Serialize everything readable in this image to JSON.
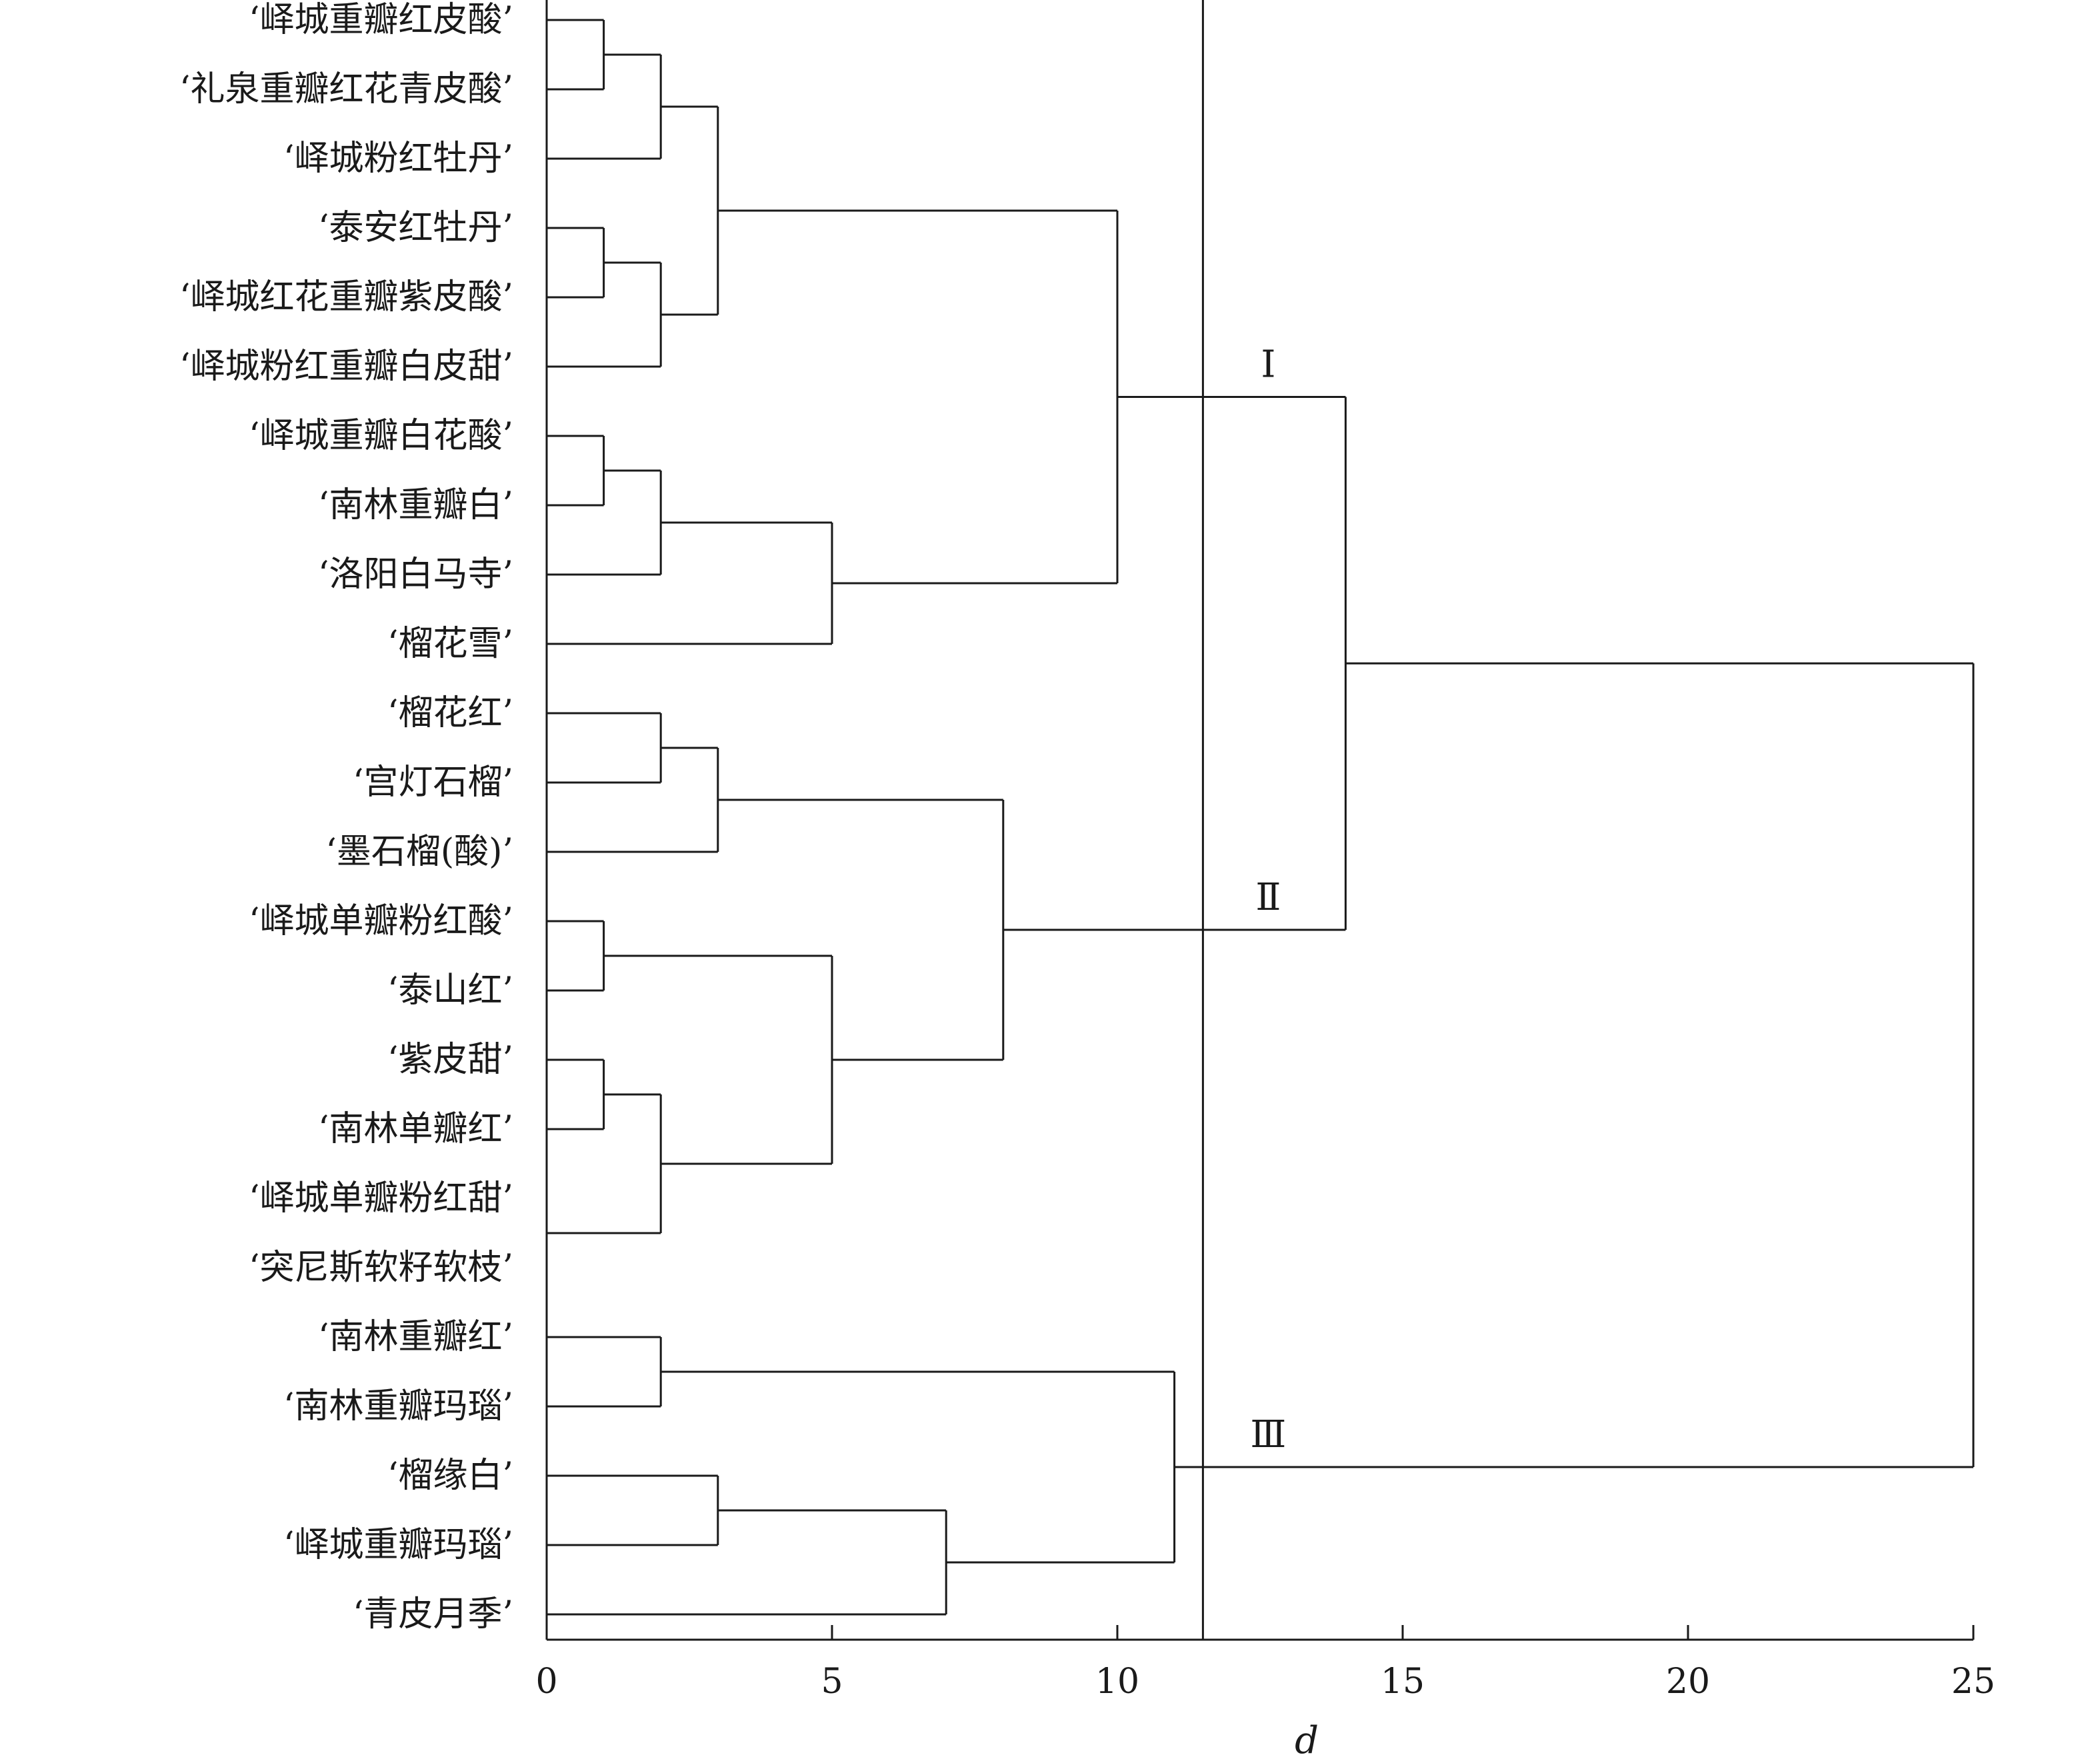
{
  "chart_data": {
    "type": "dendrogram",
    "title": "",
    "xlabel": "d",
    "ylabel": "",
    "xlim": [
      0,
      25
    ],
    "x_ticks": [
      0,
      5,
      10,
      15,
      20,
      25
    ],
    "cut_distance": 11.5,
    "grid": false,
    "leaves": [
      "‘峄城重瓣红皮酸’",
      "‘礼泉重瓣红花青皮酸’",
      "‘峄城粉红牡丹’",
      "‘泰安红牡丹’",
      "‘峄城红花重瓣紫皮酸’",
      "‘峄城粉红重瓣白皮甜’",
      "‘峄城重瓣白花酸’",
      "‘南林重瓣白’",
      "‘洛阳白马寺’",
      "‘榴花雪’",
      "‘榴花红’",
      "‘宫灯石榴’",
      "‘墨石榴(酸)’",
      "‘峄城单瓣粉红酸’",
      "‘泰山红’",
      "‘紫皮甜’",
      "‘南林单瓣红’",
      "‘峄城单瓣粉红甜’",
      "‘突尼斯软籽软枝’",
      "‘南林重瓣红’",
      "‘南林重瓣玛瑙’",
      "‘榴缘白’",
      "‘峄城重瓣玛瑙’",
      "‘青皮月季’"
    ],
    "merges": [
      {
        "a": "L0",
        "b": "L1",
        "d": 1
      },
      {
        "a": "M0",
        "b": "L2",
        "d": 2
      },
      {
        "a": "L3",
        "b": "L4",
        "d": 1
      },
      {
        "a": "M2",
        "b": "L5",
        "d": 2
      },
      {
        "a": "M1",
        "b": "M3",
        "d": 3
      },
      {
        "a": "L6",
        "b": "L7",
        "d": 1
      },
      {
        "a": "M5",
        "b": "L8",
        "d": 2
      },
      {
        "a": "M6",
        "b": "L9",
        "d": 5
      },
      {
        "a": "M4",
        "b": "M7",
        "d": 10
      },
      {
        "a": "L10",
        "b": "L11",
        "d": 2
      },
      {
        "a": "M9",
        "b": "L12",
        "d": 3
      },
      {
        "a": "L13",
        "b": "L14",
        "d": 1
      },
      {
        "a": "L15",
        "b": "L16",
        "d": 1
      },
      {
        "a": "L17",
        "b": "L18",
        "d": 0
      },
      {
        "a": "M12",
        "b": "M13",
        "d": 2
      },
      {
        "a": "M11",
        "b": "M14",
        "d": 5
      },
      {
        "a": "M10",
        "b": "M15",
        "d": 8
      },
      {
        "a": "M8",
        "b": "M16",
        "d": 14
      },
      {
        "a": "L19",
        "b": "L20",
        "d": 2
      },
      {
        "a": "L21",
        "b": "L22",
        "d": 3
      },
      {
        "a": "M19",
        "b": "L23",
        "d": 7
      },
      {
        "a": "M18",
        "b": "M20",
        "d": 11
      },
      {
        "a": "M17",
        "b": "M21",
        "d": 25
      }
    ],
    "clusters": [
      {
        "label": "Ⅰ",
        "node": "M8"
      },
      {
        "label": "Ⅱ",
        "node": "M16"
      },
      {
        "label": "Ⅲ",
        "node": "M21"
      }
    ]
  }
}
